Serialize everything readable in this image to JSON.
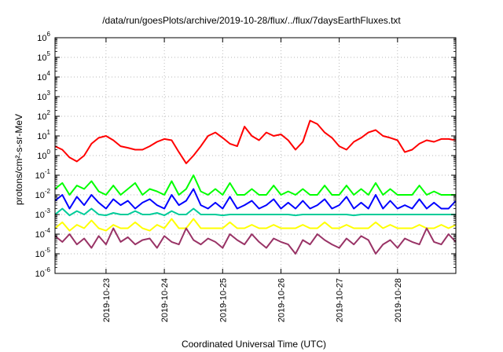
{
  "chart_data": {
    "type": "line",
    "title": "/data/run/goesPlots/archive/2019-10-28/flux/../flux/7daysEarthFluxes.txt",
    "xlabel": "Coordinated Universal Time (UTC)",
    "ylabel": "protons/cm²-s-sr-MeV",
    "yscale": "log",
    "ylim": [
      1e-06,
      1000000.0
    ],
    "xlim": [
      "2019-10-22T03:00",
      "2019-10-29T00:00"
    ],
    "grid": true,
    "legend": "none",
    "x_tick_labels": [
      "2019-10-23",
      "2019-10-24",
      "2019-10-25",
      "2019-10-26",
      "2019-10-27",
      "2019-10-28"
    ],
    "x_tick_dates": [
      "2019-10-23T00:00",
      "2019-10-24T00:00",
      "2019-10-25T00:00",
      "2019-10-26T00:00",
      "2019-10-27T00:00",
      "2019-10-28T00:00"
    ],
    "y_tick_labels": [
      {
        "base": "10",
        "exp": "-6"
      },
      {
        "base": "10",
        "exp": "-5"
      },
      {
        "base": "10",
        "exp": "-4"
      },
      {
        "base": "10",
        "exp": "-3"
      },
      {
        "base": "10",
        "exp": "-2"
      },
      {
        "base": "10",
        "exp": "-1"
      },
      {
        "base": "10",
        "exp": "0"
      },
      {
        "base": "10",
        "exp": "1"
      },
      {
        "base": "10",
        "exp": "2"
      },
      {
        "base": "10",
        "exp": "3"
      },
      {
        "base": "10",
        "exp": "4"
      },
      {
        "base": "10",
        "exp": "5"
      },
      {
        "base": "10",
        "exp": "6"
      }
    ],
    "series": [
      {
        "color": "#ff0000",
        "x": [
          "2019-10-22T03:00",
          "2019-10-22T06:00",
          "2019-10-22T09:00",
          "2019-10-22T12:00",
          "2019-10-22T15:00",
          "2019-10-22T18:00",
          "2019-10-22T21:00",
          "2019-10-23T00:00",
          "2019-10-23T03:00",
          "2019-10-23T06:00",
          "2019-10-23T09:00",
          "2019-10-23T12:00",
          "2019-10-23T15:00",
          "2019-10-23T18:00",
          "2019-10-23T21:00",
          "2019-10-24T00:00",
          "2019-10-24T03:00",
          "2019-10-24T06:00",
          "2019-10-24T09:00",
          "2019-10-24T12:00",
          "2019-10-24T15:00",
          "2019-10-24T18:00",
          "2019-10-24T21:00",
          "2019-10-25T00:00",
          "2019-10-25T03:00",
          "2019-10-25T06:00",
          "2019-10-25T09:00",
          "2019-10-25T12:00",
          "2019-10-25T15:00",
          "2019-10-25T18:00",
          "2019-10-25T21:00",
          "2019-10-26T00:00",
          "2019-10-26T03:00",
          "2019-10-26T06:00",
          "2019-10-26T09:00",
          "2019-10-26T12:00",
          "2019-10-26T15:00",
          "2019-10-26T18:00",
          "2019-10-26T21:00",
          "2019-10-27T00:00",
          "2019-10-27T03:00",
          "2019-10-27T06:00",
          "2019-10-27T09:00",
          "2019-10-27T12:00",
          "2019-10-27T15:00",
          "2019-10-27T18:00",
          "2019-10-27T21:00",
          "2019-10-28T00:00",
          "2019-10-28T03:00",
          "2019-10-28T06:00",
          "2019-10-28T09:00",
          "2019-10-28T12:00",
          "2019-10-28T15:00",
          "2019-10-28T18:00",
          "2019-10-28T21:00",
          "2019-10-29T00:00"
        ],
        "y": [
          3,
          2,
          0.8,
          0.5,
          1,
          4,
          8,
          10,
          6,
          3,
          2.5,
          2,
          2,
          3,
          5,
          7,
          6,
          1.5,
          0.4,
          1,
          3,
          10,
          15,
          8,
          4,
          3,
          30,
          10,
          6,
          15,
          10,
          12,
          6,
          2,
          5,
          60,
          40,
          15,
          8,
          3,
          2,
          5,
          8,
          15,
          20,
          10,
          8,
          6,
          1.5,
          2,
          4,
          6,
          5,
          7,
          7,
          6
        ]
      },
      {
        "color": "#00ff00",
        "x": [
          "2019-10-22T03:00",
          "2019-10-22T06:00",
          "2019-10-22T09:00",
          "2019-10-22T12:00",
          "2019-10-22T15:00",
          "2019-10-22T18:00",
          "2019-10-22T21:00",
          "2019-10-23T00:00",
          "2019-10-23T03:00",
          "2019-10-23T06:00",
          "2019-10-23T09:00",
          "2019-10-23T12:00",
          "2019-10-23T15:00",
          "2019-10-23T18:00",
          "2019-10-23T21:00",
          "2019-10-24T00:00",
          "2019-10-24T03:00",
          "2019-10-24T06:00",
          "2019-10-24T09:00",
          "2019-10-24T12:00",
          "2019-10-24T15:00",
          "2019-10-24T18:00",
          "2019-10-24T21:00",
          "2019-10-25T00:00",
          "2019-10-25T03:00",
          "2019-10-25T06:00",
          "2019-10-25T09:00",
          "2019-10-25T12:00",
          "2019-10-25T15:00",
          "2019-10-25T18:00",
          "2019-10-25T21:00",
          "2019-10-26T00:00",
          "2019-10-26T03:00",
          "2019-10-26T06:00",
          "2019-10-26T09:00",
          "2019-10-26T12:00",
          "2019-10-26T15:00",
          "2019-10-26T18:00",
          "2019-10-26T21:00",
          "2019-10-27T00:00",
          "2019-10-27T03:00",
          "2019-10-27T06:00",
          "2019-10-27T09:00",
          "2019-10-27T12:00",
          "2019-10-27T15:00",
          "2019-10-27T18:00",
          "2019-10-27T21:00",
          "2019-10-28T00:00",
          "2019-10-28T03:00",
          "2019-10-28T06:00",
          "2019-10-28T09:00",
          "2019-10-28T12:00",
          "2019-10-28T15:00",
          "2019-10-28T18:00",
          "2019-10-28T21:00",
          "2019-10-29T00:00"
        ],
        "y": [
          0.02,
          0.04,
          0.01,
          0.03,
          0.02,
          0.05,
          0.015,
          0.01,
          0.03,
          0.01,
          0.02,
          0.04,
          0.01,
          0.02,
          0.015,
          0.01,
          0.05,
          0.01,
          0.02,
          0.1,
          0.015,
          0.01,
          0.02,
          0.01,
          0.04,
          0.01,
          0.01,
          0.02,
          0.01,
          0.01,
          0.03,
          0.01,
          0.015,
          0.01,
          0.02,
          0.01,
          0.01,
          0.03,
          0.01,
          0.01,
          0.03,
          0.01,
          0.02,
          0.01,
          0.04,
          0.01,
          0.02,
          0.01,
          0.01,
          0.01,
          0.03,
          0.01,
          0.015,
          0.01,
          0.01,
          0.01
        ]
      },
      {
        "color": "#0000ff",
        "x": [
          "2019-10-22T03:00",
          "2019-10-22T06:00",
          "2019-10-22T09:00",
          "2019-10-22T12:00",
          "2019-10-22T15:00",
          "2019-10-22T18:00",
          "2019-10-22T21:00",
          "2019-10-23T00:00",
          "2019-10-23T03:00",
          "2019-10-23T06:00",
          "2019-10-23T09:00",
          "2019-10-23T12:00",
          "2019-10-23T15:00",
          "2019-10-23T18:00",
          "2019-10-23T21:00",
          "2019-10-24T00:00",
          "2019-10-24T03:00",
          "2019-10-24T06:00",
          "2019-10-24T09:00",
          "2019-10-24T12:00",
          "2019-10-24T15:00",
          "2019-10-24T18:00",
          "2019-10-24T21:00",
          "2019-10-25T00:00",
          "2019-10-25T03:00",
          "2019-10-25T06:00",
          "2019-10-25T09:00",
          "2019-10-25T12:00",
          "2019-10-25T15:00",
          "2019-10-25T18:00",
          "2019-10-25T21:00",
          "2019-10-26T00:00",
          "2019-10-26T03:00",
          "2019-10-26T06:00",
          "2019-10-26T09:00",
          "2019-10-26T12:00",
          "2019-10-26T15:00",
          "2019-10-26T18:00",
          "2019-10-26T21:00",
          "2019-10-27T00:00",
          "2019-10-27T03:00",
          "2019-10-27T06:00",
          "2019-10-27T09:00",
          "2019-10-27T12:00",
          "2019-10-27T15:00",
          "2019-10-27T18:00",
          "2019-10-27T21:00",
          "2019-10-28T00:00",
          "2019-10-28T03:00",
          "2019-10-28T06:00",
          "2019-10-28T09:00",
          "2019-10-28T12:00",
          "2019-10-28T15:00",
          "2019-10-28T18:00",
          "2019-10-28T21:00",
          "2019-10-29T00:00"
        ],
        "y": [
          0.005,
          0.01,
          0.002,
          0.008,
          0.003,
          0.01,
          0.004,
          0.002,
          0.006,
          0.003,
          0.005,
          0.002,
          0.004,
          0.006,
          0.003,
          0.002,
          0.01,
          0.003,
          0.005,
          0.02,
          0.003,
          0.002,
          0.004,
          0.002,
          0.008,
          0.002,
          0.003,
          0.005,
          0.002,
          0.003,
          0.006,
          0.002,
          0.004,
          0.002,
          0.005,
          0.002,
          0.003,
          0.006,
          0.002,
          0.003,
          0.008,
          0.002,
          0.004,
          0.002,
          0.01,
          0.002,
          0.005,
          0.002,
          0.003,
          0.002,
          0.006,
          0.002,
          0.004,
          0.002,
          0.002,
          0.005
        ]
      },
      {
        "color": "#00cc99",
        "x": [
          "2019-10-22T03:00",
          "2019-10-22T06:00",
          "2019-10-22T09:00",
          "2019-10-22T12:00",
          "2019-10-22T15:00",
          "2019-10-22T18:00",
          "2019-10-22T21:00",
          "2019-10-23T00:00",
          "2019-10-23T03:00",
          "2019-10-23T06:00",
          "2019-10-23T09:00",
          "2019-10-23T12:00",
          "2019-10-23T15:00",
          "2019-10-23T18:00",
          "2019-10-23T21:00",
          "2019-10-24T00:00",
          "2019-10-24T03:00",
          "2019-10-24T06:00",
          "2019-10-24T09:00",
          "2019-10-24T12:00",
          "2019-10-24T15:00",
          "2019-10-24T18:00",
          "2019-10-24T21:00",
          "2019-10-25T00:00",
          "2019-10-25T03:00",
          "2019-10-25T06:00",
          "2019-10-25T09:00",
          "2019-10-25T12:00",
          "2019-10-25T15:00",
          "2019-10-25T18:00",
          "2019-10-25T21:00",
          "2019-10-26T00:00",
          "2019-10-26T03:00",
          "2019-10-26T06:00",
          "2019-10-26T09:00",
          "2019-10-26T12:00",
          "2019-10-26T15:00",
          "2019-10-26T18:00",
          "2019-10-26T21:00",
          "2019-10-27T00:00",
          "2019-10-27T03:00",
          "2019-10-27T06:00",
          "2019-10-27T09:00",
          "2019-10-27T12:00",
          "2019-10-27T15:00",
          "2019-10-27T18:00",
          "2019-10-27T21:00",
          "2019-10-28T00:00",
          "2019-10-28T03:00",
          "2019-10-28T06:00",
          "2019-10-28T09:00",
          "2019-10-28T12:00",
          "2019-10-28T15:00",
          "2019-10-28T18:00",
          "2019-10-28T21:00",
          "2019-10-29T00:00"
        ],
        "y": [
          0.001,
          0.002,
          0.0009,
          0.0015,
          0.001,
          0.002,
          0.001,
          0.0009,
          0.0012,
          0.001,
          0.001,
          0.0015,
          0.001,
          0.001,
          0.0012,
          0.0009,
          0.0015,
          0.001,
          0.001,
          0.002,
          0.001,
          0.001,
          0.001,
          0.0009,
          0.001,
          0.001,
          0.001,
          0.001,
          0.001,
          0.001,
          0.001,
          0.001,
          0.001,
          0.0009,
          0.001,
          0.001,
          0.001,
          0.001,
          0.001,
          0.001,
          0.001,
          0.0009,
          0.001,
          0.001,
          0.001,
          0.001,
          0.001,
          0.001,
          0.001,
          0.001,
          0.001,
          0.001,
          0.001,
          0.001,
          0.001,
          0.001
        ]
      },
      {
        "color": "#ffff00",
        "x": [
          "2019-10-22T03:00",
          "2019-10-22T06:00",
          "2019-10-22T09:00",
          "2019-10-22T12:00",
          "2019-10-22T15:00",
          "2019-10-22T18:00",
          "2019-10-22T21:00",
          "2019-10-23T00:00",
          "2019-10-23T03:00",
          "2019-10-23T06:00",
          "2019-10-23T09:00",
          "2019-10-23T12:00",
          "2019-10-23T15:00",
          "2019-10-23T18:00",
          "2019-10-23T21:00",
          "2019-10-24T00:00",
          "2019-10-24T03:00",
          "2019-10-24T06:00",
          "2019-10-24T09:00",
          "2019-10-24T12:00",
          "2019-10-24T15:00",
          "2019-10-24T18:00",
          "2019-10-24T21:00",
          "2019-10-25T00:00",
          "2019-10-25T03:00",
          "2019-10-25T06:00",
          "2019-10-25T09:00",
          "2019-10-25T12:00",
          "2019-10-25T15:00",
          "2019-10-25T18:00",
          "2019-10-25T21:00",
          "2019-10-26T00:00",
          "2019-10-26T03:00",
          "2019-10-26T06:00",
          "2019-10-26T09:00",
          "2019-10-26T12:00",
          "2019-10-26T15:00",
          "2019-10-26T18:00",
          "2019-10-26T21:00",
          "2019-10-27T00:00",
          "2019-10-27T03:00",
          "2019-10-27T06:00",
          "2019-10-27T09:00",
          "2019-10-27T12:00",
          "2019-10-27T15:00",
          "2019-10-27T18:00",
          "2019-10-27T21:00",
          "2019-10-28T00:00",
          "2019-10-28T03:00",
          "2019-10-28T06:00",
          "2019-10-28T09:00",
          "2019-10-28T12:00",
          "2019-10-28T15:00",
          "2019-10-28T18:00",
          "2019-10-28T21:00",
          "2019-10-29T00:00"
        ],
        "y": [
          0.0002,
          0.0004,
          0.00015,
          0.0003,
          0.0002,
          0.0005,
          0.0002,
          0.00015,
          0.0003,
          0.0002,
          0.0002,
          0.0004,
          0.0002,
          0.00015,
          0.0003,
          0.0002,
          0.0006,
          0.0002,
          0.0002,
          0.0006,
          0.0002,
          0.0002,
          0.0002,
          0.0002,
          0.0004,
          0.0002,
          0.0002,
          0.0003,
          0.0002,
          0.0002,
          0.0003,
          0.0002,
          0.0002,
          0.0002,
          0.0003,
          0.0002,
          0.0002,
          0.0004,
          0.0002,
          0.0002,
          0.0003,
          0.0002,
          0.0002,
          0.0002,
          0.0004,
          0.0002,
          0.0003,
          0.0002,
          0.0002,
          0.0002,
          0.0003,
          0.0002,
          0.0002,
          0.0003,
          0.0002,
          0.0003
        ]
      },
      {
        "color": "#993366",
        "x": [
          "2019-10-22T03:00",
          "2019-10-22T06:00",
          "2019-10-22T09:00",
          "2019-10-22T12:00",
          "2019-10-22T15:00",
          "2019-10-22T18:00",
          "2019-10-22T21:00",
          "2019-10-23T00:00",
          "2019-10-23T03:00",
          "2019-10-23T06:00",
          "2019-10-23T09:00",
          "2019-10-23T12:00",
          "2019-10-23T15:00",
          "2019-10-23T18:00",
          "2019-10-23T21:00",
          "2019-10-24T00:00",
          "2019-10-24T03:00",
          "2019-10-24T06:00",
          "2019-10-24T09:00",
          "2019-10-24T12:00",
          "2019-10-24T15:00",
          "2019-10-24T18:00",
          "2019-10-24T21:00",
          "2019-10-25T00:00",
          "2019-10-25T03:00",
          "2019-10-25T06:00",
          "2019-10-25T09:00",
          "2019-10-25T12:00",
          "2019-10-25T15:00",
          "2019-10-25T18:00",
          "2019-10-25T21:00",
          "2019-10-26T00:00",
          "2019-10-26T03:00",
          "2019-10-26T06:00",
          "2019-10-26T09:00",
          "2019-10-26T12:00",
          "2019-10-26T15:00",
          "2019-10-26T18:00",
          "2019-10-26T21:00",
          "2019-10-27T00:00",
          "2019-10-27T03:00",
          "2019-10-27T06:00",
          "2019-10-27T09:00",
          "2019-10-27T12:00",
          "2019-10-27T15:00",
          "2019-10-27T18:00",
          "2019-10-27T21:00",
          "2019-10-28T00:00",
          "2019-10-28T03:00",
          "2019-10-28T06:00",
          "2019-10-28T09:00",
          "2019-10-28T12:00",
          "2019-10-28T15:00",
          "2019-10-28T18:00",
          "2019-10-28T21:00",
          "2019-10-29T00:00"
        ],
        "y": [
          8e-05,
          4e-05,
          0.0001,
          3e-05,
          6e-05,
          2e-05,
          8e-05,
          3e-05,
          0.0002,
          4e-05,
          7e-05,
          3e-05,
          5e-05,
          6e-05,
          2e-05,
          8e-05,
          4e-05,
          3e-05,
          0.0002,
          5e-05,
          3e-05,
          6e-05,
          4e-05,
          2e-05,
          0.0001,
          5e-05,
          3e-05,
          0.0001,
          4e-05,
          2e-05,
          6e-05,
          4e-05,
          3e-05,
          1e-05,
          5e-05,
          3e-05,
          0.0001,
          5e-05,
          3e-05,
          2e-05,
          6e-05,
          3e-05,
          8e-05,
          5e-05,
          1e-05,
          3e-05,
          5e-05,
          2e-05,
          6e-05,
          4e-05,
          3e-05,
          0.0002,
          4e-05,
          3e-05,
          0.0001,
          4e-05
        ]
      }
    ]
  }
}
